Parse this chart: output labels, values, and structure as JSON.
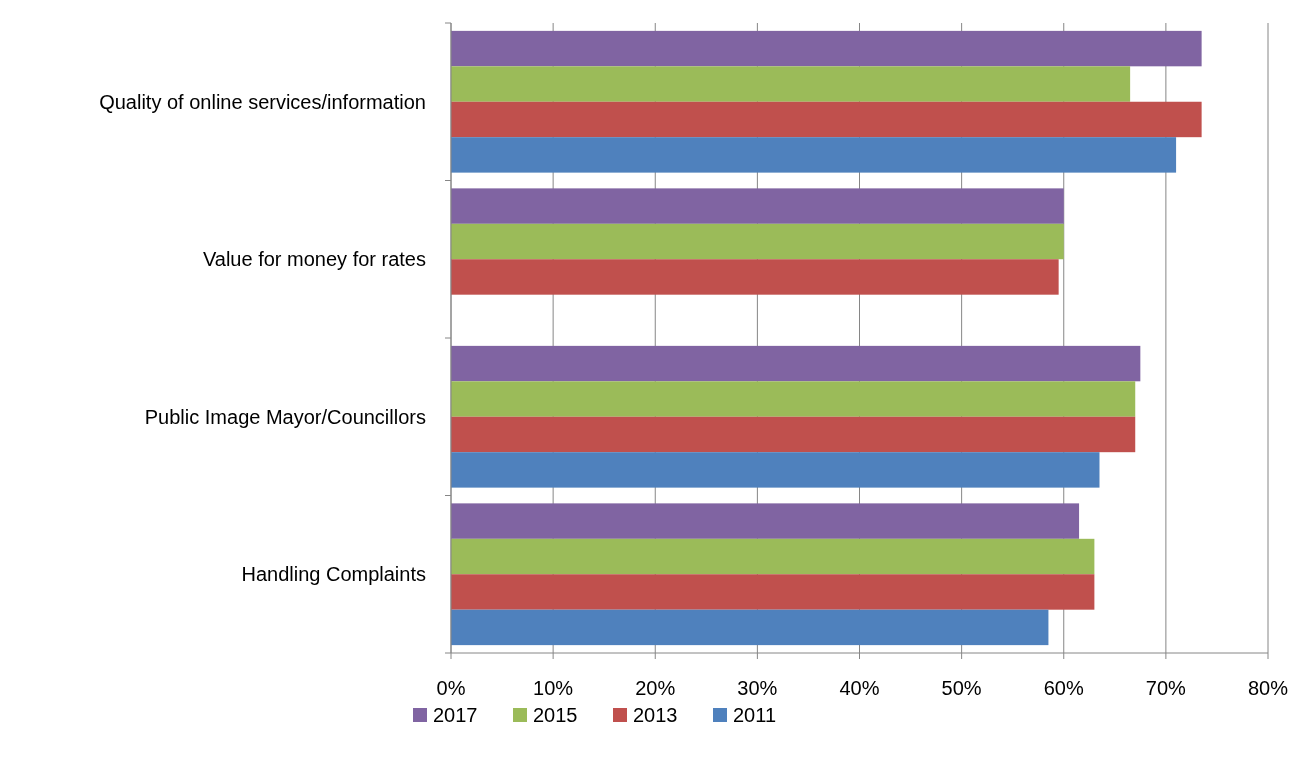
{
  "chart_data": {
    "type": "bar",
    "orientation": "horizontal",
    "categories": [
      "Quality of online services/information",
      "Value for money for rates",
      "Public Image Mayor/Councillors",
      "Handling Complaints"
    ],
    "series": [
      {
        "name": "2017",
        "color": "#8064a2",
        "values": [
          73.5,
          60,
          67.5,
          61.5
        ]
      },
      {
        "name": "2015",
        "color": "#9bbb59",
        "values": [
          66.5,
          60,
          67,
          63
        ]
      },
      {
        "name": "2013",
        "color": "#c0504d",
        "values": [
          73.5,
          59.5,
          67,
          63
        ]
      },
      {
        "name": "2011",
        "color": "#4f81bd",
        "values": [
          71,
          null,
          63.5,
          58.5
        ]
      }
    ],
    "xlim": [
      0,
      80
    ],
    "xticks": [
      {
        "value": 0,
        "label": "0%"
      },
      {
        "value": 10,
        "label": "10%"
      },
      {
        "value": 20,
        "label": "20%"
      },
      {
        "value": 30,
        "label": "30%"
      },
      {
        "value": 40,
        "label": "40%"
      },
      {
        "value": 50,
        "label": "50%"
      },
      {
        "value": 60,
        "label": "60%"
      },
      {
        "value": 70,
        "label": "70%"
      },
      {
        "value": 80,
        "label": "80%"
      }
    ],
    "grid": "x",
    "legend": "bottom"
  }
}
